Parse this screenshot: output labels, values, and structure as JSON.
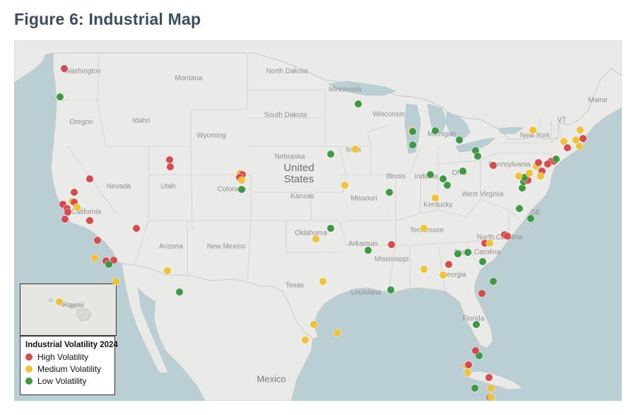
{
  "title": "Figure 6: Industrial Map",
  "colors": {
    "high": "#d94a4c",
    "medium": "#f1c232",
    "low": "#3c9b42",
    "land": "#e9e9e7",
    "water": "#b9cfd3"
  },
  "legend": {
    "title": "Industrial Volatility 2024",
    "items": [
      {
        "label": "High Volatility",
        "level": "high"
      },
      {
        "label": "Medium Volatility",
        "level": "medium"
      },
      {
        "label": "Low Volatility",
        "level": "low"
      }
    ]
  },
  "labels": {
    "countries": {
      "us": "United\nStates",
      "mexico": "Mexico"
    },
    "states": [
      "Washington",
      "Montana",
      "North Dakota",
      "Minnesota",
      "Oregon",
      "Idaho",
      "South Dakota",
      "Wisconsin",
      "Michigan",
      "Wyoming",
      "Nebraska",
      "Iowa",
      "New York",
      "Nevada",
      "Utah",
      "Colorado",
      "Kansas",
      "Illinois",
      "Indiana",
      "Ohio",
      "Pennsylvania",
      "Missouri",
      "West Virginia",
      "Kentucky",
      "California",
      "Oklahoma",
      "Tennessee",
      "North Carolina",
      "Arizona",
      "New Mexico",
      "Arkansas",
      "South Carolina",
      "Mississippi",
      "Georgia",
      "Texas",
      "Louisiana",
      "Florida",
      "Maine",
      "VT",
      "DE",
      "Hawaii"
    ]
  },
  "sites": [
    {
      "level": "high",
      "lon": -122.3,
      "lat": 47.6
    },
    {
      "level": "low",
      "lon": -122.7,
      "lat": 45.5
    },
    {
      "level": "high",
      "lon": -119.8,
      "lat": 39.5
    },
    {
      "level": "high",
      "lon": -122.4,
      "lat": 37.8
    },
    {
      "level": "high",
      "lon": -122.0,
      "lat": 37.5
    },
    {
      "level": "high",
      "lon": -121.9,
      "lat": 37.3
    },
    {
      "level": "high",
      "lon": -121.3,
      "lat": 38.6
    },
    {
      "level": "medium",
      "lon": -121.5,
      "lat": 38.0
    },
    {
      "level": "high",
      "lon": -121.3,
      "lat": 37.95
    },
    {
      "level": "medium",
      "lon": -121.0,
      "lat": 37.6
    },
    {
      "level": "high",
      "lon": -122.2,
      "lat": 36.8
    },
    {
      "level": "high",
      "lon": -119.8,
      "lat": 36.7
    },
    {
      "level": "high",
      "lon": -119.0,
      "lat": 35.4
    },
    {
      "level": "medium",
      "lon": -119.3,
      "lat": 34.2
    },
    {
      "level": "high",
      "lon": -118.2,
      "lat": 34.05
    },
    {
      "level": "high",
      "lon": -117.4,
      "lat": 34.1
    },
    {
      "level": "low",
      "lon": -117.9,
      "lat": 33.8
    },
    {
      "level": "medium",
      "lon": -117.2,
      "lat": 32.8
    },
    {
      "level": "high",
      "lon": -115.2,
      "lat": 36.2
    },
    {
      "level": "high",
      "lon": -111.9,
      "lat": 40.8
    },
    {
      "level": "high",
      "lon": -111.8,
      "lat": 40.3
    },
    {
      "level": "medium",
      "lon": -112.1,
      "lat": 33.45
    },
    {
      "level": "low",
      "lon": -110.9,
      "lat": 32.2
    },
    {
      "level": "medium",
      "lon": -104.9,
      "lat": 39.9
    },
    {
      "level": "high",
      "lon": -104.7,
      "lat": 39.8
    },
    {
      "level": "high",
      "lon": -105.0,
      "lat": 39.6
    },
    {
      "level": "medium",
      "lon": -104.8,
      "lat": 39.4
    },
    {
      "level": "low",
      "lon": -104.8,
      "lat": 38.8
    },
    {
      "level": "low",
      "lon": -93.3,
      "lat": 44.98
    },
    {
      "level": "medium",
      "lon": -88.0,
      "lat": 43.0
    },
    {
      "level": "low",
      "lon": -87.9,
      "lat": 42.9
    },
    {
      "level": "low",
      "lon": -85.7,
      "lat": 42.95
    },
    {
      "level": "low",
      "lon": -83.3,
      "lat": 42.3
    },
    {
      "level": "low",
      "lon": -87.95,
      "lat": 41.9
    },
    {
      "level": "medium",
      "lon": -93.6,
      "lat": 41.6
    },
    {
      "level": "low",
      "lon": -96.0,
      "lat": 41.25
    },
    {
      "level": "medium",
      "lon": -94.6,
      "lat": 39.1
    },
    {
      "level": "low",
      "lon": -90.2,
      "lat": 38.6
    },
    {
      "level": "low",
      "lon": -96.0,
      "lat": 36.2
    },
    {
      "level": "medium",
      "lon": -97.5,
      "lat": 35.5
    },
    {
      "level": "medium",
      "lon": -96.8,
      "lat": 32.8
    },
    {
      "level": "medium",
      "lon": -95.4,
      "lat": 29.8
    },
    {
      "level": "medium",
      "lon": -97.7,
      "lat": 30.3
    },
    {
      "level": "medium",
      "lon": -98.5,
      "lat": 29.4
    },
    {
      "level": "low",
      "lon": -92.3,
      "lat": 34.75
    },
    {
      "level": "low",
      "lon": -90.1,
      "lat": 32.3
    },
    {
      "level": "high",
      "lon": -90.0,
      "lat": 35.1
    },
    {
      "level": "medium",
      "lon": -86.8,
      "lat": 36.2
    },
    {
      "level": "medium",
      "lon": -85.7,
      "lat": 38.25
    },
    {
      "level": "low",
      "lon": -86.15,
      "lat": 39.8
    },
    {
      "level": "low",
      "lon": -84.5,
      "lat": 39.1
    },
    {
      "level": "low",
      "lon": -84.9,
      "lat": 39.5
    },
    {
      "level": "low",
      "lon": -83.0,
      "lat": 40.0
    },
    {
      "level": "low",
      "lon": -81.7,
      "lat": 41.5
    },
    {
      "level": "low",
      "lon": -81.5,
      "lat": 41.1
    },
    {
      "level": "high",
      "lon": -80.0,
      "lat": 40.4
    },
    {
      "level": "medium",
      "lon": -86.8,
      "lat": 33.5
    },
    {
      "level": "high",
      "lon": -84.4,
      "lat": 33.8
    },
    {
      "level": "medium",
      "lon": -84.9,
      "lat": 33.2
    },
    {
      "level": "low",
      "lon": -83.5,
      "lat": 34.5
    },
    {
      "level": "low",
      "lon": -82.5,
      "lat": 34.6
    },
    {
      "level": "low",
      "lon": -81.0,
      "lat": 34.0
    },
    {
      "level": "high",
      "lon": -80.8,
      "lat": 35.2
    },
    {
      "level": "medium",
      "lon": -80.3,
      "lat": 35.2
    },
    {
      "level": "high",
      "lon": -78.9,
      "lat": 35.8
    },
    {
      "level": "high",
      "lon": -78.6,
      "lat": 35.7
    },
    {
      "level": "low",
      "lon": -80.0,
      "lat": 32.8
    },
    {
      "level": "high",
      "lon": -81.1,
      "lat": 32.1
    },
    {
      "level": "low",
      "lon": -81.65,
      "lat": 30.3
    },
    {
      "level": "low",
      "lon": -81.4,
      "lat": 28.5
    },
    {
      "level": "high",
      "lon": -81.7,
      "lat": 28.8
    },
    {
      "level": "medium",
      "lon": -82.6,
      "lat": 27.9
    },
    {
      "level": "high",
      "lon": -82.4,
      "lat": 27.95
    },
    {
      "level": "medium",
      "lon": -82.5,
      "lat": 27.5
    },
    {
      "level": "high",
      "lon": -80.4,
      "lat": 27.2
    },
    {
      "level": "medium",
      "lon": -80.2,
      "lat": 26.6
    },
    {
      "level": "low",
      "lon": -81.8,
      "lat": 26.6
    },
    {
      "level": "high",
      "lon": -80.3,
      "lat": 26.0
    },
    {
      "level": "medium",
      "lon": -80.2,
      "lat": 25.8
    },
    {
      "level": "low",
      "lon": -77.4,
      "lat": 37.5
    },
    {
      "level": "low",
      "lon": -76.3,
      "lat": 36.85
    },
    {
      "level": "low",
      "lon": -77.1,
      "lat": 38.9
    },
    {
      "level": "low",
      "lon": -77.0,
      "lat": 39.3
    },
    {
      "level": "high",
      "lon": -76.6,
      "lat": 39.4
    },
    {
      "level": "low",
      "lon": -76.9,
      "lat": 39.6
    },
    {
      "level": "medium",
      "lon": -77.5,
      "lat": 39.7
    },
    {
      "level": "medium",
      "lon": -76.4,
      "lat": 39.9
    },
    {
      "level": "medium",
      "lon": -75.7,
      "lat": 40.35
    },
    {
      "level": "high",
      "lon": -75.2,
      "lat": 40.0
    },
    {
      "level": "high",
      "lon": -75.5,
      "lat": 40.6
    },
    {
      "level": "medium",
      "lon": -75.3,
      "lat": 39.7
    },
    {
      "level": "high",
      "lon": -74.3,
      "lat": 40.7
    },
    {
      "level": "high",
      "lon": -74.0,
      "lat": 40.7
    },
    {
      "level": "high",
      "lon": -74.6,
      "lat": 40.5
    },
    {
      "level": "low",
      "lon": -73.8,
      "lat": 40.85
    },
    {
      "level": "medium",
      "lon": -76.1,
      "lat": 43.0
    },
    {
      "level": "high",
      "lon": -72.7,
      "lat": 41.7
    },
    {
      "level": "medium",
      "lon": -73.0,
      "lat": 42.2
    },
    {
      "level": "medium",
      "lon": -71.8,
      "lat": 42.3
    },
    {
      "level": "high",
      "lon": -71.1,
      "lat": 42.4
    },
    {
      "level": "medium",
      "lon": -71.5,
      "lat": 41.8
    },
    {
      "level": "medium",
      "lon": -71.4,
      "lat": 43.0
    },
    {
      "level": "medium",
      "lon": -157.9,
      "lat": 21.35
    }
  ]
}
